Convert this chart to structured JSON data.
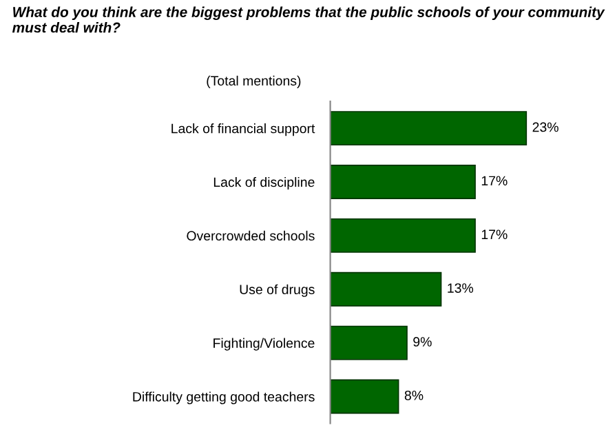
{
  "chart_data": {
    "type": "bar",
    "orientation": "horizontal",
    "title": "What do you think are the biggest problems that the public schools of your community must deal with?",
    "subtitle": "(Total mentions)",
    "categories": [
      "Lack of financial support",
      "Lack of discipline",
      "Overcrowded schools",
      "Use of drugs",
      "Fighting/Violence",
      "Difficulty getting good teachers"
    ],
    "values": [
      23,
      17,
      17,
      13,
      9,
      8
    ],
    "value_labels": [
      "23%",
      "17%",
      "17%",
      "13%",
      "9%",
      "8%"
    ],
    "color": "#006600",
    "grid": false,
    "legend": false
  }
}
